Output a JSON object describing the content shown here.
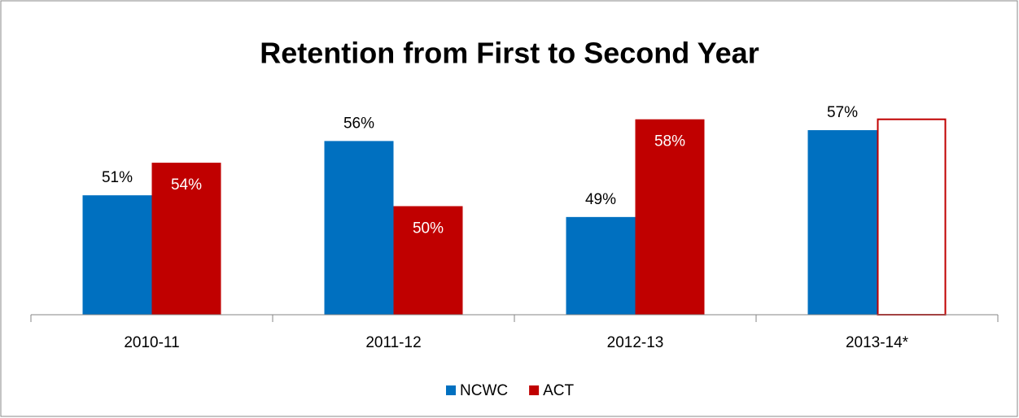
{
  "chart_data": {
    "type": "bar",
    "title": "Retention from First to Second Year",
    "categories": [
      "2010-11",
      "2011-12",
      "2012-13",
      "2013-14*"
    ],
    "series": [
      {
        "name": "NCWC",
        "color": "#0070c0",
        "values": [
          51,
          56,
          49,
          57
        ],
        "value_labels": [
          "51%",
          "56%",
          "49%",
          "57%"
        ],
        "label_position": "outside"
      },
      {
        "name": "ACT",
        "color": "#c00000",
        "values": [
          54,
          50,
          58,
          58
        ],
        "value_labels": [
          "54%",
          "50%",
          "58%",
          null
        ],
        "label_position": "inside",
        "hollow_index": 3
      }
    ],
    "ylim": [
      40,
      60
    ],
    "legend": "bottom"
  }
}
